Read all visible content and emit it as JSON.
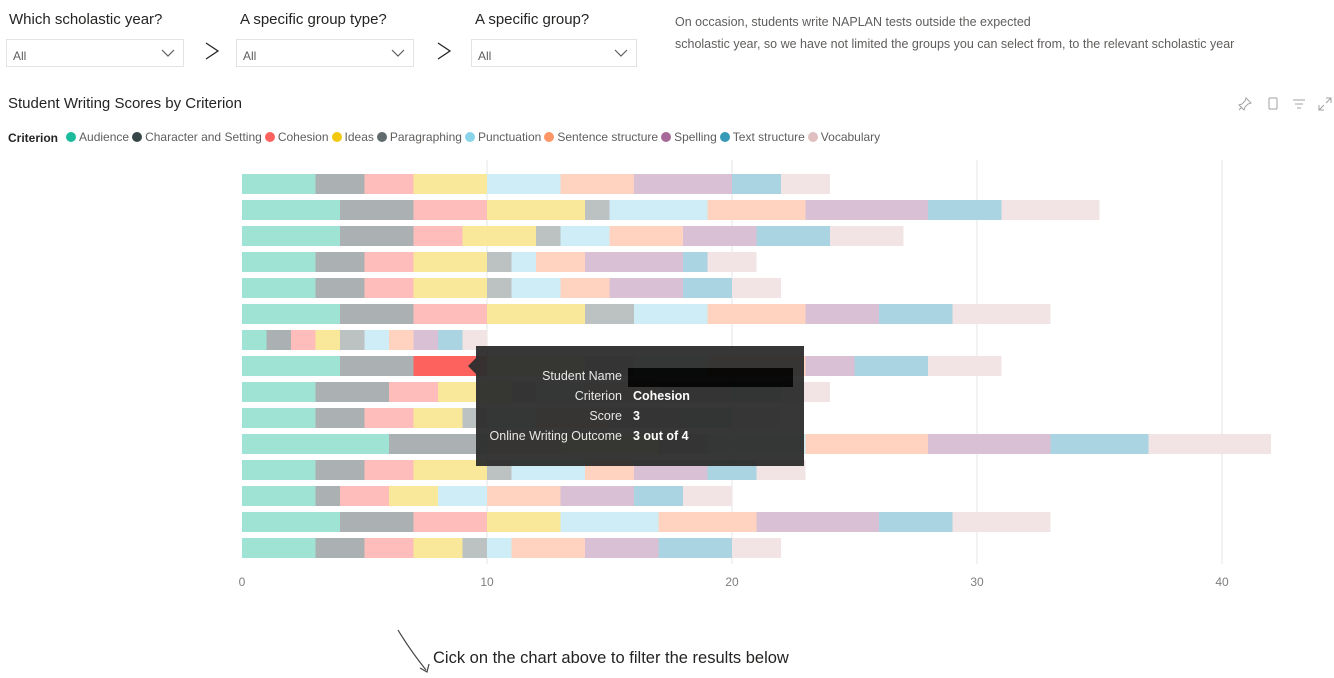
{
  "filters": [
    {
      "label": "Which scholastic year?",
      "value": "All"
    },
    {
      "label": "A specific group type?",
      "value": "All"
    },
    {
      "label": "A specific group?",
      "value": "All"
    }
  ],
  "note": {
    "line1": "On occasion, students write NAPLAN tests outside the expected",
    "line2": "scholastic year, so we have not limited the groups you can select from, to the relevant scholastic year"
  },
  "chart_title": "Student Writing Scores by Criterion",
  "legend": {
    "title": "Criterion",
    "items": [
      {
        "name": "Audience",
        "color": "#1abc9c"
      },
      {
        "name": "Character and Setting",
        "color": "#374649"
      },
      {
        "name": "Cohesion",
        "color": "#fd625e"
      },
      {
        "name": "Ideas",
        "color": "#f2c80f"
      },
      {
        "name": "Paragraphing",
        "color": "#5f6b6d"
      },
      {
        "name": "Punctuation",
        "color": "#8ad4eb"
      },
      {
        "name": "Sentence structure",
        "color": "#fe9666"
      },
      {
        "name": "Spelling",
        "color": "#a66999"
      },
      {
        "name": "Text structure",
        "color": "#3599b8"
      },
      {
        "name": "Vocabulary",
        "color": "#dfbfbf"
      }
    ]
  },
  "chart_data": {
    "type": "bar",
    "orientation": "horizontal",
    "stacked": true,
    "title": "Student Writing Scores by Criterion",
    "categories": [
      "Audience",
      "Character and Setting",
      "Cohesion",
      "Ideas",
      "Paragraphing",
      "Punctuation",
      "Sentence structure",
      "Spelling",
      "Text structure",
      "Vocabulary"
    ],
    "rows": [
      [
        3,
        2,
        2,
        3,
        0,
        3,
        3,
        4,
        2,
        2
      ],
      [
        4,
        3,
        3,
        4,
        1,
        4,
        4,
        5,
        3,
        4
      ],
      [
        4,
        3,
        2,
        3,
        1,
        2,
        3,
        3,
        3,
        3
      ],
      [
        3,
        2,
        2,
        3,
        1,
        1,
        2,
        4,
        1,
        2
      ],
      [
        3,
        2,
        2,
        3,
        1,
        2,
        2,
        3,
        2,
        2
      ],
      [
        4,
        3,
        3,
        4,
        2,
        3,
        4,
        3,
        3,
        4
      ],
      [
        1,
        1,
        1,
        1,
        1,
        1,
        1,
        1,
        1,
        1
      ],
      [
        4,
        3,
        3,
        4,
        2,
        3,
        4,
        2,
        3,
        3
      ],
      [
        3,
        3,
        2,
        3,
        1,
        2,
        3,
        3,
        2,
        2
      ],
      [
        3,
        2,
        2,
        2,
        1,
        2,
        3,
        3,
        2,
        2
      ],
      [
        6,
        4,
        3,
        4,
        2,
        4,
        5,
        5,
        4,
        5
      ],
      [
        3,
        2,
        2,
        3,
        1,
        3,
        2,
        3,
        2,
        2
      ],
      [
        3,
        1,
        2,
        2,
        0,
        2,
        3,
        3,
        2,
        2
      ],
      [
        4,
        3,
        3,
        3,
        0,
        4,
        4,
        5,
        3,
        4
      ],
      [
        3,
        2,
        2,
        2,
        1,
        1,
        3,
        3,
        3,
        2
      ]
    ],
    "x_ticks": [
      0,
      10,
      20,
      30,
      40
    ],
    "xlim": [
      0,
      44
    ],
    "grid": true,
    "legend_position": "top-left",
    "highlight": {
      "row": 7,
      "series": 2
    }
  },
  "tooltip": {
    "rows": [
      {
        "key": "Student Name",
        "value": ""
      },
      {
        "key": "Criterion",
        "value": "Cohesion"
      },
      {
        "key": "Score",
        "value": "3"
      },
      {
        "key": "Online Writing Outcome",
        "value": "3 out of 4"
      }
    ]
  },
  "hint": "Cick on the chart above to filter the results below"
}
